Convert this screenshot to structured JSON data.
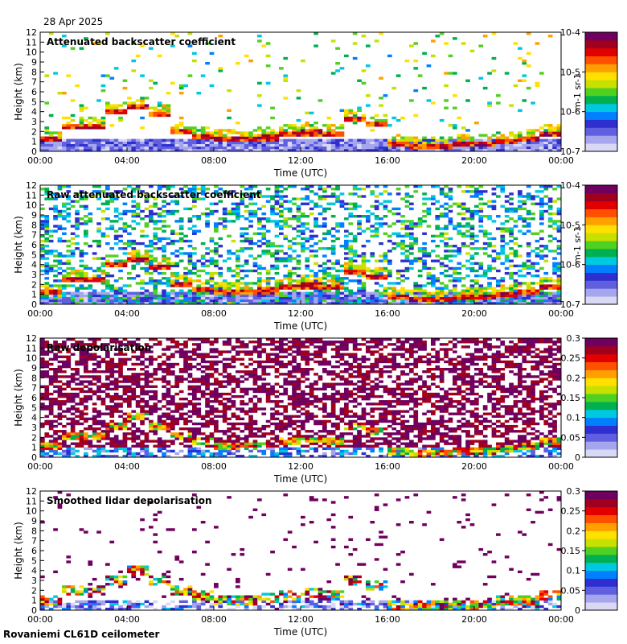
{
  "date": "28 Apr 2025",
  "footer": "Rovaniemi CL61D ceilometer",
  "chart_data": [
    {
      "type": "heatmap",
      "title": "Attenuated backscatter coefficient",
      "xlabel": "Time (UTC)",
      "ylabel": "Height (km)",
      "x_ticks": [
        "00:00",
        "04:00",
        "08:00",
        "12:00",
        "16:00",
        "20:00",
        "00:00"
      ],
      "y_ticks": [
        "0",
        "1",
        "2",
        "3",
        "4",
        "5",
        "6",
        "7",
        "8",
        "9",
        "10",
        "11",
        "12"
      ],
      "ylim": [
        0,
        12
      ],
      "colorbar": {
        "scale": "log",
        "ticks": [
          "10-7",
          "10-6",
          "10-5",
          "10-4"
        ],
        "unit": "m-1 sr-1"
      },
      "cloud_base_km": [
        1.0,
        2.4,
        2.3,
        3.8,
        4.4,
        3.6,
        1.9,
        1.4,
        1.0,
        1.0,
        1.2,
        1.6,
        1.7,
        1.5,
        3.0,
        2.5,
        0.5,
        0.4,
        0.4,
        0.5,
        0.6,
        0.9,
        1.0,
        1.6
      ],
      "noise": "low"
    },
    {
      "type": "heatmap",
      "title": "Raw attenuated backscatter coefficient",
      "xlabel": "Time (UTC)",
      "ylabel": "Height (km)",
      "x_ticks": [
        "00:00",
        "04:00",
        "08:00",
        "12:00",
        "16:00",
        "20:00",
        "00:00"
      ],
      "y_ticks": [
        "0",
        "1",
        "2",
        "3",
        "4",
        "5",
        "6",
        "7",
        "8",
        "9",
        "10",
        "11",
        "12"
      ],
      "ylim": [
        0,
        12
      ],
      "colorbar": {
        "scale": "log",
        "ticks": [
          "10-7",
          "10-6",
          "10-5",
          "10-4"
        ],
        "unit": "m-1 sr-1"
      },
      "cloud_base_km": [
        1.0,
        2.4,
        2.3,
        3.8,
        4.4,
        3.6,
        1.9,
        1.4,
        1.0,
        1.0,
        1.2,
        1.6,
        1.7,
        1.5,
        3.0,
        2.5,
        0.5,
        0.4,
        0.4,
        0.5,
        0.6,
        0.9,
        1.0,
        1.6
      ],
      "noise": "high"
    },
    {
      "type": "heatmap",
      "title": "Raw depolarisation",
      "xlabel": "Time (UTC)",
      "ylabel": "Height (km)",
      "x_ticks": [
        "00:00",
        "04:00",
        "08:00",
        "12:00",
        "16:00",
        "20:00",
        "00:00"
      ],
      "y_ticks": [
        "0",
        "1",
        "2",
        "3",
        "4",
        "5",
        "6",
        "7",
        "8",
        "9",
        "10",
        "11",
        "12"
      ],
      "ylim": [
        0,
        12
      ],
      "colorbar": {
        "scale": "linear",
        "range": [
          0,
          0.3
        ],
        "ticks": [
          "0",
          "0.05",
          "0.1",
          "0.15",
          "0.2",
          "0.25",
          "0.3"
        ]
      },
      "noise": "saturated"
    },
    {
      "type": "heatmap",
      "title": "Smoothed lidar depolarisation",
      "xlabel": "Time (UTC)",
      "ylabel": "Height (km)",
      "x_ticks": [
        "00:00",
        "04:00",
        "08:00",
        "12:00",
        "16:00",
        "20:00",
        "00:00"
      ],
      "y_ticks": [
        "0",
        "1",
        "2",
        "3",
        "4",
        "5",
        "6",
        "7",
        "8",
        "9",
        "10",
        "11",
        "12"
      ],
      "ylim": [
        0,
        12
      ],
      "colorbar": {
        "scale": "linear",
        "range": [
          0,
          0.3
        ],
        "ticks": [
          "0",
          "0.05",
          "0.1",
          "0.15",
          "0.2",
          "0.25",
          "0.3"
        ]
      },
      "noise": "sparse"
    }
  ]
}
